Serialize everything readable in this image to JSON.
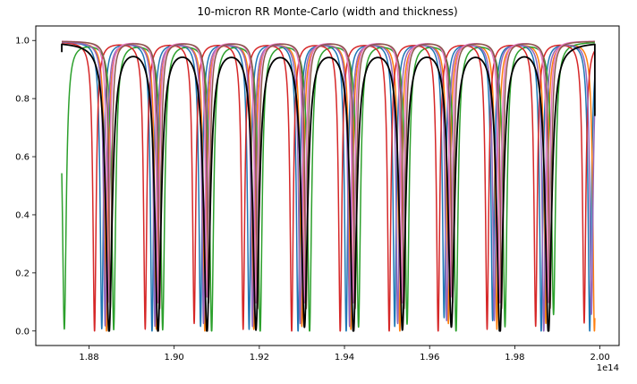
{
  "chart_data": {
    "type": "line",
    "title": "10-micron RR Monte-Carlo (width and thickness)",
    "xlabel": "",
    "ylabel": "",
    "x_offset_label": "1e14",
    "x_scale": 100000000000000.0,
    "xlim": [
      1.8675,
      2.0045
    ],
    "ylim": [
      -0.05,
      1.05
    ],
    "x_ticks": [
      1.88,
      1.9,
      1.92,
      1.94,
      1.96,
      1.98,
      2.0
    ],
    "x_tick_labels": [
      "1.88",
      "1.90",
      "1.92",
      "1.94",
      "1.96",
      "1.98",
      "2.00"
    ],
    "y_ticks": [
      0.0,
      0.2,
      0.4,
      0.6,
      0.8,
      1.0
    ],
    "y_tick_labels": [
      "0.0",
      "0.2",
      "0.4",
      "0.6",
      "0.8",
      "1.0"
    ],
    "x_range": [
      1.8736,
      1.9988
    ],
    "grid": false,
    "legend": "none",
    "series": [
      {
        "color": "#1f77b4",
        "baseline": 0.997,
        "dip_halfwidth": 0.00045,
        "dips": [
          {
            "x": 1.883,
            "min": 0.01
          },
          {
            "x": 1.8948,
            "min": 0.0
          },
          {
            "x": 1.9062,
            "min": 0.02
          },
          {
            "x": 1.9176,
            "min": 0.01
          },
          {
            "x": 1.9291,
            "min": 0.0
          },
          {
            "x": 1.9404,
            "min": 0.0
          },
          {
            "x": 1.9518,
            "min": 0.02
          },
          {
            "x": 1.9634,
            "min": 0.05
          },
          {
            "x": 1.9748,
            "min": 0.04
          },
          {
            "x": 1.9862,
            "min": 0.0
          },
          {
            "x": 1.9976,
            "min": 0.0
          }
        ]
      },
      {
        "color": "#ff7f0e",
        "baseline": 0.997,
        "dip_halfwidth": 0.00045,
        "dips": [
          {
            "x": 1.8841,
            "min": 0.0
          },
          {
            "x": 1.8958,
            "min": 0.01
          },
          {
            "x": 1.9072,
            "min": 0.0
          },
          {
            "x": 1.9187,
            "min": 0.01
          },
          {
            "x": 1.93,
            "min": 0.02
          },
          {
            "x": 1.9415,
            "min": 0.01
          },
          {
            "x": 1.953,
            "min": 0.0
          },
          {
            "x": 1.9644,
            "min": 0.03
          },
          {
            "x": 1.9758,
            "min": 0.01
          },
          {
            "x": 1.9873,
            "min": 0.03
          },
          {
            "x": 1.9987,
            "min": 0.0
          }
        ]
      },
      {
        "color": "#2ca02c",
        "baseline": 0.997,
        "dip_halfwidth": 0.00055,
        "dips": [
          {
            "x": 1.8742,
            "min": 0.01
          },
          {
            "x": 1.8858,
            "min": 0.01
          },
          {
            "x": 1.8973,
            "min": 0.01
          },
          {
            "x": 1.9088,
            "min": 0.0
          },
          {
            "x": 1.9202,
            "min": 0.0
          },
          {
            "x": 1.9318,
            "min": 0.0
          },
          {
            "x": 1.9433,
            "min": 0.02
          },
          {
            "x": 1.9547,
            "min": 0.03
          },
          {
            "x": 1.9662,
            "min": 0.0
          },
          {
            "x": 1.9777,
            "min": 0.02
          },
          {
            "x": 1.9891,
            "min": 0.06
          }
        ]
      },
      {
        "color": "#d62728",
        "baseline": 0.997,
        "dip_halfwidth": 0.00045,
        "dips": [
          {
            "x": 1.8813,
            "min": 0.0
          },
          {
            "x": 1.8932,
            "min": 0.01
          },
          {
            "x": 1.9047,
            "min": 0.03
          },
          {
            "x": 1.9162,
            "min": 0.01
          },
          {
            "x": 1.9276,
            "min": 0.0
          },
          {
            "x": 1.939,
            "min": 0.0
          },
          {
            "x": 1.9505,
            "min": 0.0
          },
          {
            "x": 1.962,
            "min": 0.0
          },
          {
            "x": 1.9735,
            "min": 0.01
          },
          {
            "x": 1.9849,
            "min": 0.02
          },
          {
            "x": 1.9963,
            "min": 0.03
          }
        ]
      },
      {
        "color": "#9467bd",
        "baseline": 0.997,
        "dip_halfwidth": 0.00045,
        "dips": [
          {
            "x": 1.8838,
            "min": 0.02
          },
          {
            "x": 1.8955,
            "min": 0.02
          },
          {
            "x": 1.9069,
            "min": 0.03
          },
          {
            "x": 1.9184,
            "min": 0.02
          },
          {
            "x": 1.9296,
            "min": 0.03
          },
          {
            "x": 1.9412,
            "min": 0.02
          },
          {
            "x": 1.9525,
            "min": 0.03
          },
          {
            "x": 1.964,
            "min": 0.04
          },
          {
            "x": 1.9752,
            "min": 0.04
          },
          {
            "x": 1.9868,
            "min": 0.0
          },
          {
            "x": 1.998,
            "min": 0.06
          }
        ]
      },
      {
        "color": "#e377c2",
        "baseline": 0.999,
        "dip_halfwidth": 0.0004,
        "dips": [
          {
            "x": 1.8845,
            "min": 0.1
          },
          {
            "x": 1.8962,
            "min": 0.1
          },
          {
            "x": 1.9077,
            "min": 0.12
          },
          {
            "x": 1.9192,
            "min": 0.1
          },
          {
            "x": 1.9306,
            "min": 0.1
          },
          {
            "x": 1.9421,
            "min": 0.1
          },
          {
            "x": 1.9536,
            "min": 0.1
          },
          {
            "x": 1.965,
            "min": 0.12
          },
          {
            "x": 1.9765,
            "min": 0.1
          },
          {
            "x": 1.9879,
            "min": 0.1
          }
        ]
      },
      {
        "color": "#8c564b",
        "baseline": 0.998,
        "dip_halfwidth": 0.0004,
        "dips": [
          {
            "x": 1.885,
            "min": 0.08
          },
          {
            "x": 1.8966,
            "min": 0.08
          },
          {
            "x": 1.9081,
            "min": 0.1
          },
          {
            "x": 1.9196,
            "min": 0.08
          },
          {
            "x": 1.931,
            "min": 0.08
          },
          {
            "x": 1.9425,
            "min": 0.08
          },
          {
            "x": 1.954,
            "min": 0.08
          },
          {
            "x": 1.9654,
            "min": 0.1
          },
          {
            "x": 1.9769,
            "min": 0.08
          },
          {
            "x": 1.9883,
            "min": 0.08
          }
        ]
      },
      {
        "color": "#000000",
        "baseline": 0.997,
        "dip_halfwidth": 0.0009,
        "start_value": 0.96,
        "end_value": 0.74,
        "dips": [
          {
            "x": 1.8847,
            "min": 0.0
          },
          {
            "x": 1.8962,
            "min": 0.01
          },
          {
            "x": 1.9077,
            "min": 0.01
          },
          {
            "x": 1.9192,
            "min": 0.02
          },
          {
            "x": 1.9306,
            "min": 0.03
          },
          {
            "x": 1.9421,
            "min": 0.01
          },
          {
            "x": 1.9536,
            "min": 0.02
          },
          {
            "x": 1.9651,
            "min": 0.03
          },
          {
            "x": 1.9765,
            "min": 0.0
          },
          {
            "x": 1.9879,
            "min": 0.0
          }
        ]
      }
    ]
  }
}
